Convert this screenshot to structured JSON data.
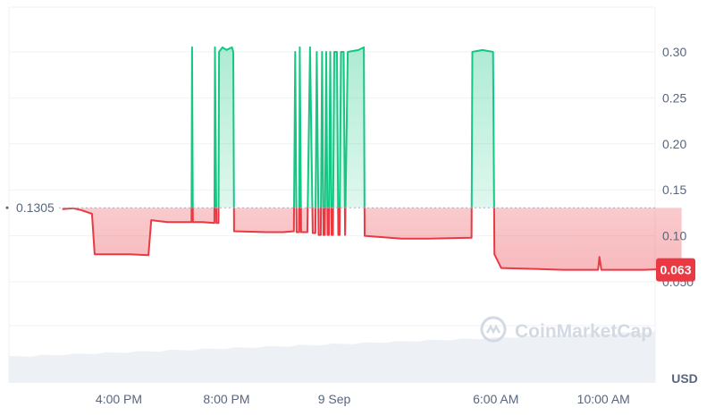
{
  "chart_data": {
    "type": "area",
    "currency": "USD",
    "baseline": {
      "value": 0.1305,
      "label": "0.1305"
    },
    "last_price": {
      "value": 0.063,
      "label": "0.063"
    },
    "ylim": [
      0,
      0.34
    ],
    "y_ticks": [
      {
        "value": 0.3,
        "label": "0.30"
      },
      {
        "value": 0.25,
        "label": "0.25"
      },
      {
        "value": 0.2,
        "label": "0.20"
      },
      {
        "value": 0.15,
        "label": "0.15"
      },
      {
        "value": 0.1,
        "label": "0.10"
      },
      {
        "value": 0.05,
        "label": "0.050"
      }
    ],
    "x_ticks": [
      {
        "t": 4,
        "label": "4:00 PM"
      },
      {
        "t": 8,
        "label": "8:00 PM"
      },
      {
        "t": 12,
        "label": "9 Sep"
      },
      {
        "t": 18,
        "label": "6:00 AM"
      },
      {
        "t": 22,
        "label": "10:00 AM"
      }
    ],
    "xlim": [
      1.9,
      24.9
    ],
    "series": [
      {
        "points": [
          [
            1.9,
            0.129
          ],
          [
            2.3,
            0.13
          ],
          [
            2.6,
            0.128
          ],
          [
            2.9,
            0.125
          ],
          [
            3.0,
            0.124
          ],
          [
            3.1,
            0.08
          ],
          [
            4.4,
            0.08
          ],
          [
            5.1,
            0.079
          ],
          [
            5.2,
            0.117
          ],
          [
            5.8,
            0.115
          ],
          [
            6.7,
            0.115
          ],
          [
            6.72,
            0.305
          ],
          [
            6.75,
            0.115
          ],
          [
            7.1,
            0.115
          ],
          [
            7.55,
            0.114
          ],
          [
            7.57,
            0.305
          ],
          [
            7.62,
            0.114
          ],
          [
            7.7,
            0.114
          ],
          [
            7.72,
            0.3
          ],
          [
            7.85,
            0.305
          ],
          [
            8.0,
            0.302
          ],
          [
            8.2,
            0.305
          ],
          [
            8.25,
            0.3
          ],
          [
            8.28,
            0.105
          ],
          [
            9.5,
            0.104
          ],
          [
            10.1,
            0.104
          ],
          [
            10.5,
            0.105
          ],
          [
            10.55,
            0.3
          ],
          [
            10.6,
            0.104
          ],
          [
            10.7,
            0.104
          ],
          [
            10.72,
            0.305
          ],
          [
            10.77,
            0.104
          ],
          [
            10.9,
            0.104
          ],
          [
            11.0,
            0.104
          ],
          [
            11.1,
            0.305
          ],
          [
            11.2,
            0.103
          ],
          [
            11.3,
            0.103
          ],
          [
            11.35,
            0.3
          ],
          [
            11.42,
            0.101
          ],
          [
            11.5,
            0.101
          ],
          [
            11.55,
            0.3
          ],
          [
            11.6,
            0.101
          ],
          [
            11.65,
            0.101
          ],
          [
            11.7,
            0.3
          ],
          [
            11.75,
            0.101
          ],
          [
            11.8,
            0.101
          ],
          [
            11.85,
            0.3
          ],
          [
            11.9,
            0.101
          ],
          [
            11.95,
            0.101
          ],
          [
            12.0,
            0.3
          ],
          [
            12.1,
            0.3
          ],
          [
            12.15,
            0.101
          ],
          [
            12.2,
            0.101
          ],
          [
            12.25,
            0.3
          ],
          [
            12.35,
            0.3
          ],
          [
            12.4,
            0.101
          ],
          [
            12.5,
            0.3
          ],
          [
            12.9,
            0.302
          ],
          [
            13.1,
            0.305
          ],
          [
            13.13,
            0.1
          ],
          [
            14.5,
            0.097
          ],
          [
            15.5,
            0.097
          ],
          [
            17.1,
            0.098
          ],
          [
            17.13,
            0.3
          ],
          [
            17.5,
            0.302
          ],
          [
            17.9,
            0.3
          ],
          [
            17.95,
            0.08
          ],
          [
            18.2,
            0.065
          ],
          [
            19.5,
            0.064
          ],
          [
            20.5,
            0.063
          ],
          [
            21.8,
            0.063
          ],
          [
            21.85,
            0.077
          ],
          [
            21.92,
            0.063
          ],
          [
            23.5,
            0.063
          ],
          [
            24.4,
            0.064
          ],
          [
            24.9,
            0.063
          ]
        ]
      }
    ],
    "colors": {
      "up": "#16c784",
      "down": "#ea3943",
      "grid": "#eff2f5",
      "axis_text": "#58667e",
      "volume": "#edf0f4"
    },
    "watermark": "CoinMarketCap"
  }
}
